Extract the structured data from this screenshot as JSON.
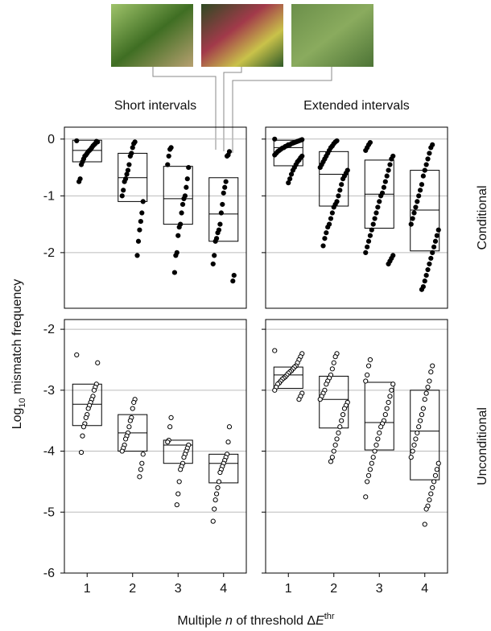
{
  "figure": {
    "y_label": {
      "base": "Log",
      "sub": "10",
      "rest": " mismatch frequency"
    },
    "x_label": {
      "a": "Multiple ",
      "n": "n",
      "b": " of threshold Δ",
      "e": "E",
      "sup": "thr"
    }
  },
  "chart_data": [
    {
      "type": "box",
      "title": "Short intervals",
      "categories": [
        null,
        null,
        null,
        null
      ],
      "marker": "filled",
      "ylim": [
        -2.98,
        0.21
      ],
      "yticks": [
        0,
        -1,
        -2
      ],
      "grid": true,
      "boxes": [
        {
          "q1": -0.4,
          "median": -0.2,
          "q3": -0.02,
          "points": [
            -0.03,
            -0.05,
            -0.04,
            -0.08,
            -0.1,
            -0.12,
            -0.15,
            -0.18,
            -0.2,
            -0.22,
            -0.25,
            -0.28,
            -0.3,
            -0.35,
            -0.4,
            -0.45,
            -0.7,
            -0.75
          ]
        },
        {
          "q1": -1.1,
          "median": -0.68,
          "q3": -0.25,
          "points": [
            -0.05,
            -0.08,
            -0.15,
            -0.25,
            -0.3,
            -0.45,
            -0.55,
            -0.62,
            -0.7,
            -0.75,
            -0.9,
            -1.0,
            -1.1,
            -1.3,
            -1.45,
            -1.6,
            -1.8,
            -2.05
          ]
        },
        {
          "q1": -1.5,
          "median": -1.05,
          "q3": -0.48,
          "points": [
            -0.15,
            -0.18,
            -0.3,
            -0.45,
            -0.5,
            -0.7,
            -0.85,
            -1.0,
            -1.05,
            -1.15,
            -1.3,
            -1.5,
            -1.55,
            -1.7,
            -2.0,
            -2.05,
            -2.35
          ]
        },
        {
          "q1": -1.8,
          "median": -1.32,
          "q3": -0.68,
          "points": [
            -0.22,
            -0.28,
            -0.3,
            -0.75,
            -0.85,
            -0.95,
            -1.15,
            -1.3,
            -1.5,
            -1.6,
            -1.65,
            -1.75,
            -1.8,
            -2.05,
            -2.2,
            -2.4,
            -2.5
          ]
        }
      ]
    },
    {
      "type": "box",
      "title": "Extended intervals",
      "row_label": "Conditional",
      "categories": [
        null,
        null,
        null,
        null
      ],
      "marker": "filled",
      "ylim": [
        -2.98,
        0.21
      ],
      "yticks": [
        0,
        -1,
        -2
      ],
      "grid": true,
      "boxes": [
        {
          "q1": -0.47,
          "median": -0.15,
          "q3": -0.02,
          "points": [
            0,
            -0.01,
            -0.02,
            -0.03,
            -0.04,
            -0.05,
            -0.06,
            -0.07,
            -0.08,
            -0.1,
            -0.1,
            -0.12,
            -0.13,
            -0.15,
            -0.16,
            -0.18,
            -0.2,
            -0.22,
            -0.25,
            -0.28,
            -0.3,
            -0.33,
            -0.37,
            -0.4,
            -0.45,
            -0.5,
            -0.55,
            -0.62,
            -0.7,
            -0.77
          ]
        },
        {
          "q1": -1.18,
          "median": -0.62,
          "q3": -0.22,
          "points": [
            -0.03,
            -0.05,
            -0.08,
            -0.12,
            -0.15,
            -0.2,
            -0.25,
            -0.3,
            -0.35,
            -0.4,
            -0.45,
            -0.5,
            -0.55,
            -0.6,
            -0.65,
            -0.7,
            -0.8,
            -0.9,
            -1.0,
            -1.1,
            -1.15,
            -1.2,
            -1.3,
            -1.4,
            -1.5,
            -1.55,
            -1.65,
            -1.75,
            -1.88
          ]
        },
        {
          "q1": -1.57,
          "median": -0.97,
          "q3": -0.37,
          "points": [
            -0.06,
            -0.1,
            -0.15,
            -0.2,
            -0.3,
            -0.35,
            -0.45,
            -0.55,
            -0.65,
            -0.75,
            -0.85,
            -0.95,
            -1.0,
            -1.1,
            -1.2,
            -1.3,
            -1.4,
            -1.5,
            -1.6,
            -1.7,
            -1.8,
            -1.9,
            -2.0,
            -2.05,
            -2.1,
            -2.15,
            -2.2
          ]
        },
        {
          "q1": -1.97,
          "median": -1.25,
          "q3": -0.55,
          "points": [
            -0.1,
            -0.15,
            -0.25,
            -0.35,
            -0.45,
            -0.55,
            -0.65,
            -0.8,
            -0.9,
            -1.0,
            -1.1,
            -1.2,
            -1.3,
            -1.4,
            -1.5,
            -1.6,
            -1.7,
            -1.8,
            -1.9,
            -2.0,
            -2.1,
            -2.2,
            -2.3,
            -2.4,
            -2.5,
            -2.6,
            -2.65
          ]
        }
      ]
    },
    {
      "type": "box",
      "categories": [
        "1",
        "2",
        "3",
        "4"
      ],
      "marker": "open",
      "ylim": [
        -6,
        -1.84
      ],
      "yticks": [
        -2,
        -3,
        -4,
        -5,
        -6
      ],
      "grid": true,
      "boxes": [
        {
          "q1": -3.58,
          "median": -3.23,
          "q3": -2.9,
          "points": [
            -2.42,
            -2.55,
            -2.9,
            -2.95,
            -3.0,
            -3.1,
            -3.15,
            -3.2,
            -3.25,
            -3.3,
            -3.4,
            -3.45,
            -3.55,
            -3.6,
            -3.75,
            -4.02
          ]
        },
        {
          "q1": -4.0,
          "median": -3.7,
          "q3": -3.4,
          "points": [
            -3.15,
            -3.2,
            -3.3,
            -3.45,
            -3.5,
            -3.6,
            -3.7,
            -3.75,
            -3.8,
            -3.9,
            -3.95,
            -4.0,
            -4.05,
            -4.2,
            -4.3,
            -4.42
          ]
        },
        {
          "q1": -4.2,
          "median": -3.9,
          "q3": -3.82,
          "points": [
            -3.45,
            -3.6,
            -3.82,
            -3.85,
            -3.9,
            -3.95,
            -4.0,
            -4.05,
            -4.1,
            -4.2,
            -4.25,
            -4.3,
            -4.5,
            -4.7,
            -4.88
          ]
        },
        {
          "q1": -4.52,
          "median": -4.2,
          "q3": -4.05,
          "points": [
            -3.6,
            -3.85,
            -4.05,
            -4.1,
            -4.15,
            -4.2,
            -4.25,
            -4.3,
            -4.35,
            -4.5,
            -4.6,
            -4.7,
            -4.8,
            -4.95,
            -5.15
          ]
        }
      ]
    },
    {
      "type": "box",
      "row_label": "Unconditional",
      "categories": [
        "1",
        "2",
        "3",
        "4"
      ],
      "marker": "open",
      "ylim": [
        -6,
        -1.84
      ],
      "yticks": [
        -2,
        -3,
        -4,
        -5,
        -6
      ],
      "grid": true,
      "boxes": [
        {
          "q1": -2.97,
          "median": -2.75,
          "q3": -2.62,
          "points": [
            -2.35,
            -2.4,
            -2.45,
            -2.5,
            -2.55,
            -2.6,
            -2.62,
            -2.65,
            -2.68,
            -2.7,
            -2.72,
            -2.75,
            -2.78,
            -2.8,
            -2.82,
            -2.85,
            -2.88,
            -2.9,
            -2.95,
            -3.0,
            -3.05,
            -3.1,
            -3.15
          ]
        },
        {
          "q1": -3.62,
          "median": -3.15,
          "q3": -2.77,
          "points": [
            -2.4,
            -2.45,
            -2.55,
            -2.65,
            -2.75,
            -2.8,
            -2.85,
            -2.9,
            -3.0,
            -3.05,
            -3.1,
            -3.15,
            -3.2,
            -3.25,
            -3.3,
            -3.4,
            -3.5,
            -3.6,
            -3.7,
            -3.8,
            -3.9,
            -4.0,
            -4.1,
            -4.17
          ]
        },
        {
          "q1": -3.98,
          "median": -3.53,
          "q3": -2.87,
          "points": [
            -2.5,
            -2.6,
            -2.75,
            -2.85,
            -2.9,
            -3.0,
            -3.1,
            -3.2,
            -3.3,
            -3.4,
            -3.5,
            -3.55,
            -3.6,
            -3.7,
            -3.8,
            -3.9,
            -4.0,
            -4.1,
            -4.2,
            -4.3,
            -4.4,
            -4.5,
            -4.75
          ]
        },
        {
          "q1": -4.47,
          "median": -3.67,
          "q3": -3.0,
          "points": [
            -2.6,
            -2.7,
            -2.85,
            -2.95,
            -3.05,
            -3.15,
            -3.3,
            -3.4,
            -3.5,
            -3.6,
            -3.7,
            -3.8,
            -3.9,
            -4.0,
            -4.1,
            -4.2,
            -4.3,
            -4.4,
            -4.5,
            -4.6,
            -4.7,
            -4.8,
            -4.9,
            -4.95,
            -5.2
          ]
        }
      ]
    }
  ]
}
